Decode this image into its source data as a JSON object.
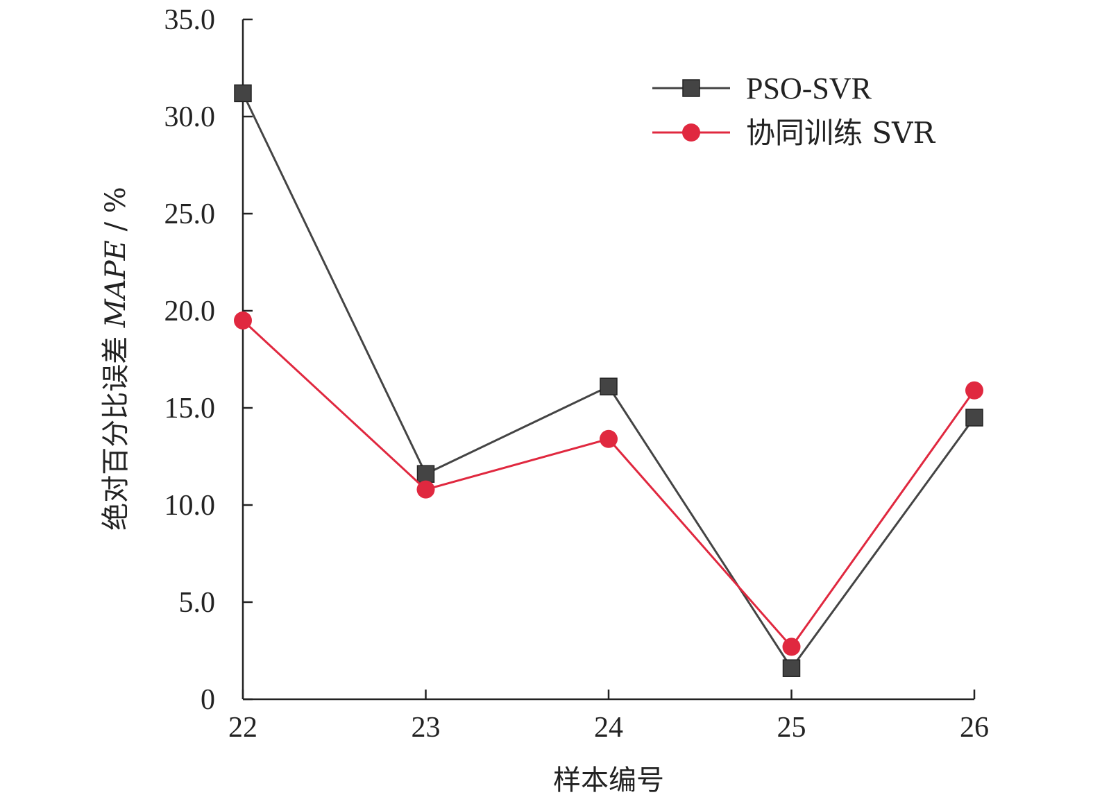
{
  "chart_data": {
    "type": "line",
    "categories": [
      "22",
      "23",
      "24",
      "25",
      "26"
    ],
    "x": [
      22,
      23,
      24,
      25,
      26
    ],
    "series": [
      {
        "name": "PSO-SVR",
        "values": [
          31.2,
          11.6,
          16.1,
          1.6,
          14.5
        ],
        "color": "#444444",
        "marker": "square"
      },
      {
        "name": "协同训练 SVR",
        "values": [
          19.5,
          10.8,
          13.4,
          2.7,
          15.9
        ],
        "color": "#e0283f",
        "marker": "circle"
      }
    ],
    "xlabel": "样本编号",
    "ylabel_prefix": "绝对百分比误差 ",
    "ylabel_italic": "MAPE",
    "ylabel_suffix": " / %",
    "ylim": [
      0,
      35
    ],
    "yticks": [
      0,
      5,
      10,
      15,
      20,
      25,
      30,
      35
    ],
    "ytick_labels": [
      "0",
      "5.0",
      "10.0",
      "15.0",
      "20.0",
      "25.0",
      "30.0",
      "35.0"
    ],
    "legend_position": "top-right",
    "grid": false
  }
}
